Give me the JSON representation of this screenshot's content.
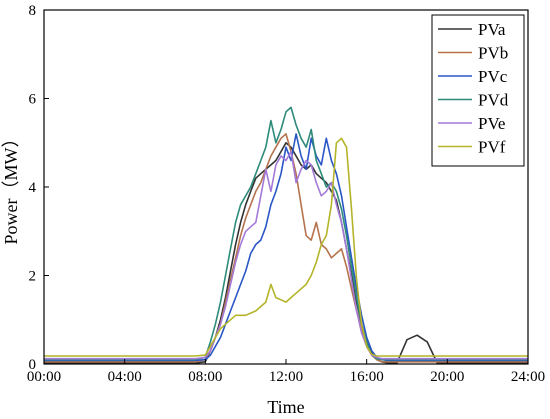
{
  "chart_data": {
    "type": "line",
    "xlabel": "Time",
    "ylabel": "Power（MW）",
    "xlim": [
      0,
      24
    ],
    "ylim": [
      0,
      8
    ],
    "x_ticks": [
      0,
      4,
      8,
      12,
      16,
      20,
      24
    ],
    "x_tick_labels": [
      "00:00",
      "04:00",
      "08:00",
      "12:00",
      "16:00",
      "20:00",
      "24:00"
    ],
    "y_ticks": [
      0,
      2,
      4,
      6,
      8
    ],
    "y_tick_labels": [
      "0",
      "2",
      "4",
      "6",
      "8"
    ],
    "grid": false,
    "legend_position": "top-right",
    "x": [
      0,
      0.5,
      1,
      1.5,
      2,
      2.5,
      3,
      3.5,
      4,
      4.5,
      5,
      5.5,
      6,
      6.5,
      7,
      7.5,
      8,
      8.25,
      8.5,
      8.75,
      9,
      9.25,
      9.5,
      9.75,
      10,
      10.25,
      10.5,
      10.75,
      11,
      11.25,
      11.5,
      11.75,
      12,
      12.25,
      12.5,
      12.75,
      13,
      13.25,
      13.5,
      13.75,
      14,
      14.25,
      14.5,
      14.75,
      15,
      15.25,
      15.5,
      15.75,
      16,
      16.25,
      16.5,
      16.75,
      17,
      17.5,
      18,
      18.5,
      19,
      19.5,
      20,
      20.5,
      21,
      21.5,
      22,
      22.5,
      23,
      23.5,
      24
    ],
    "series": [
      {
        "name": "PVa",
        "color": "#333333",
        "values": [
          0.02,
          0.02,
          0.02,
          0.02,
          0.02,
          0.02,
          0.02,
          0.02,
          0.02,
          0.02,
          0.02,
          0.02,
          0.02,
          0.02,
          0.02,
          0.02,
          0.05,
          0.3,
          0.6,
          1.0,
          1.5,
          2.1,
          2.7,
          3.2,
          3.6,
          3.9,
          4.2,
          4.3,
          4.4,
          4.5,
          4.6,
          4.8,
          5.0,
          4.9,
          4.7,
          4.5,
          4.4,
          4.5,
          4.3,
          4.2,
          4.1,
          3.9,
          3.7,
          3.2,
          2.6,
          2.0,
          1.4,
          0.9,
          0.5,
          0.25,
          0.1,
          0.05,
          0.03,
          0.02,
          0.55,
          0.65,
          0.5,
          0.02,
          0.02,
          0.02,
          0.02,
          0.02,
          0.02,
          0.02,
          0.02,
          0.02,
          0.02
        ]
      },
      {
        "name": "PVb",
        "color": "#b5734d",
        "values": [
          0.05,
          0.05,
          0.05,
          0.05,
          0.05,
          0.05,
          0.05,
          0.05,
          0.05,
          0.05,
          0.05,
          0.05,
          0.05,
          0.05,
          0.05,
          0.05,
          0.1,
          0.3,
          0.6,
          0.9,
          1.4,
          1.9,
          2.4,
          2.9,
          3.3,
          3.6,
          3.9,
          4.1,
          4.4,
          4.7,
          4.9,
          5.1,
          5.2,
          4.8,
          4.3,
          3.6,
          2.9,
          2.8,
          3.2,
          2.7,
          2.6,
          2.4,
          2.5,
          2.6,
          2.2,
          1.7,
          1.2,
          0.8,
          0.4,
          0.2,
          0.1,
          0.05,
          0.05,
          0.05,
          0.05,
          0.05,
          0.05,
          0.05,
          0.05,
          0.05,
          0.05,
          0.05,
          0.05,
          0.05,
          0.05,
          0.05,
          0.05
        ]
      },
      {
        "name": "PVc",
        "color": "#2a56c6",
        "values": [
          0.08,
          0.08,
          0.08,
          0.08,
          0.08,
          0.08,
          0.08,
          0.08,
          0.08,
          0.08,
          0.08,
          0.08,
          0.08,
          0.08,
          0.08,
          0.08,
          0.1,
          0.2,
          0.4,
          0.6,
          0.9,
          1.2,
          1.5,
          1.8,
          2.1,
          2.5,
          2.7,
          2.8,
          3.1,
          3.6,
          3.9,
          4.3,
          4.9,
          4.6,
          5.2,
          4.7,
          4.4,
          5.1,
          4.7,
          4.5,
          5.1,
          4.6,
          4.3,
          3.8,
          3.1,
          2.4,
          1.7,
          1.1,
          0.6,
          0.3,
          0.15,
          0.1,
          0.08,
          0.08,
          0.08,
          0.08,
          0.08,
          0.08,
          0.08,
          0.08,
          0.08,
          0.08,
          0.08,
          0.08,
          0.08,
          0.08,
          0.08
        ]
      },
      {
        "name": "PVd",
        "color": "#2e8b7a",
        "values": [
          0.1,
          0.1,
          0.1,
          0.1,
          0.1,
          0.1,
          0.1,
          0.1,
          0.1,
          0.1,
          0.1,
          0.1,
          0.1,
          0.1,
          0.1,
          0.1,
          0.15,
          0.5,
          0.9,
          1.4,
          2.0,
          2.6,
          3.2,
          3.6,
          3.8,
          4.0,
          4.3,
          4.6,
          4.9,
          5.5,
          5.0,
          5.3,
          5.7,
          5.8,
          5.4,
          5.1,
          4.9,
          5.3,
          4.6,
          4.3,
          4.0,
          4.1,
          3.9,
          3.5,
          2.9,
          2.2,
          1.5,
          0.9,
          0.5,
          0.2,
          0.12,
          0.1,
          0.1,
          0.1,
          0.1,
          0.1,
          0.1,
          0.1,
          0.1,
          0.1,
          0.1,
          0.1,
          0.1,
          0.1,
          0.1,
          0.1,
          0.1
        ]
      },
      {
        "name": "PVe",
        "color": "#a47ad9",
        "values": [
          0.12,
          0.12,
          0.12,
          0.12,
          0.12,
          0.12,
          0.12,
          0.12,
          0.12,
          0.12,
          0.12,
          0.12,
          0.12,
          0.12,
          0.12,
          0.12,
          0.15,
          0.3,
          0.6,
          0.9,
          1.3,
          1.8,
          2.3,
          2.7,
          3.0,
          3.1,
          3.2,
          3.8,
          4.4,
          3.9,
          4.5,
          4.7,
          4.6,
          4.8,
          4.1,
          4.4,
          4.6,
          4.5,
          4.1,
          3.8,
          3.9,
          4.1,
          3.6,
          3.2,
          2.6,
          1.9,
          1.2,
          0.7,
          0.4,
          0.2,
          0.15,
          0.12,
          0.12,
          0.12,
          0.12,
          0.12,
          0.12,
          0.12,
          0.12,
          0.12,
          0.12,
          0.12,
          0.12,
          0.12,
          0.12,
          0.12,
          0.12
        ]
      },
      {
        "name": "PVf",
        "color": "#b4b42a",
        "values": [
          0.18,
          0.18,
          0.18,
          0.18,
          0.18,
          0.18,
          0.18,
          0.18,
          0.18,
          0.18,
          0.18,
          0.18,
          0.18,
          0.18,
          0.18,
          0.18,
          0.2,
          0.4,
          0.6,
          0.8,
          0.9,
          1.0,
          1.1,
          1.1,
          1.1,
          1.15,
          1.2,
          1.3,
          1.4,
          1.8,
          1.5,
          1.45,
          1.4,
          1.5,
          1.6,
          1.7,
          1.8,
          2.0,
          2.3,
          2.7,
          2.9,
          3.6,
          5.0,
          5.1,
          4.9,
          3.5,
          1.9,
          0.9,
          0.4,
          0.22,
          0.18,
          0.18,
          0.18,
          0.18,
          0.18,
          0.18,
          0.18,
          0.18,
          0.18,
          0.18,
          0.18,
          0.18,
          0.18,
          0.18,
          0.18,
          0.18,
          0.18
        ]
      }
    ]
  }
}
